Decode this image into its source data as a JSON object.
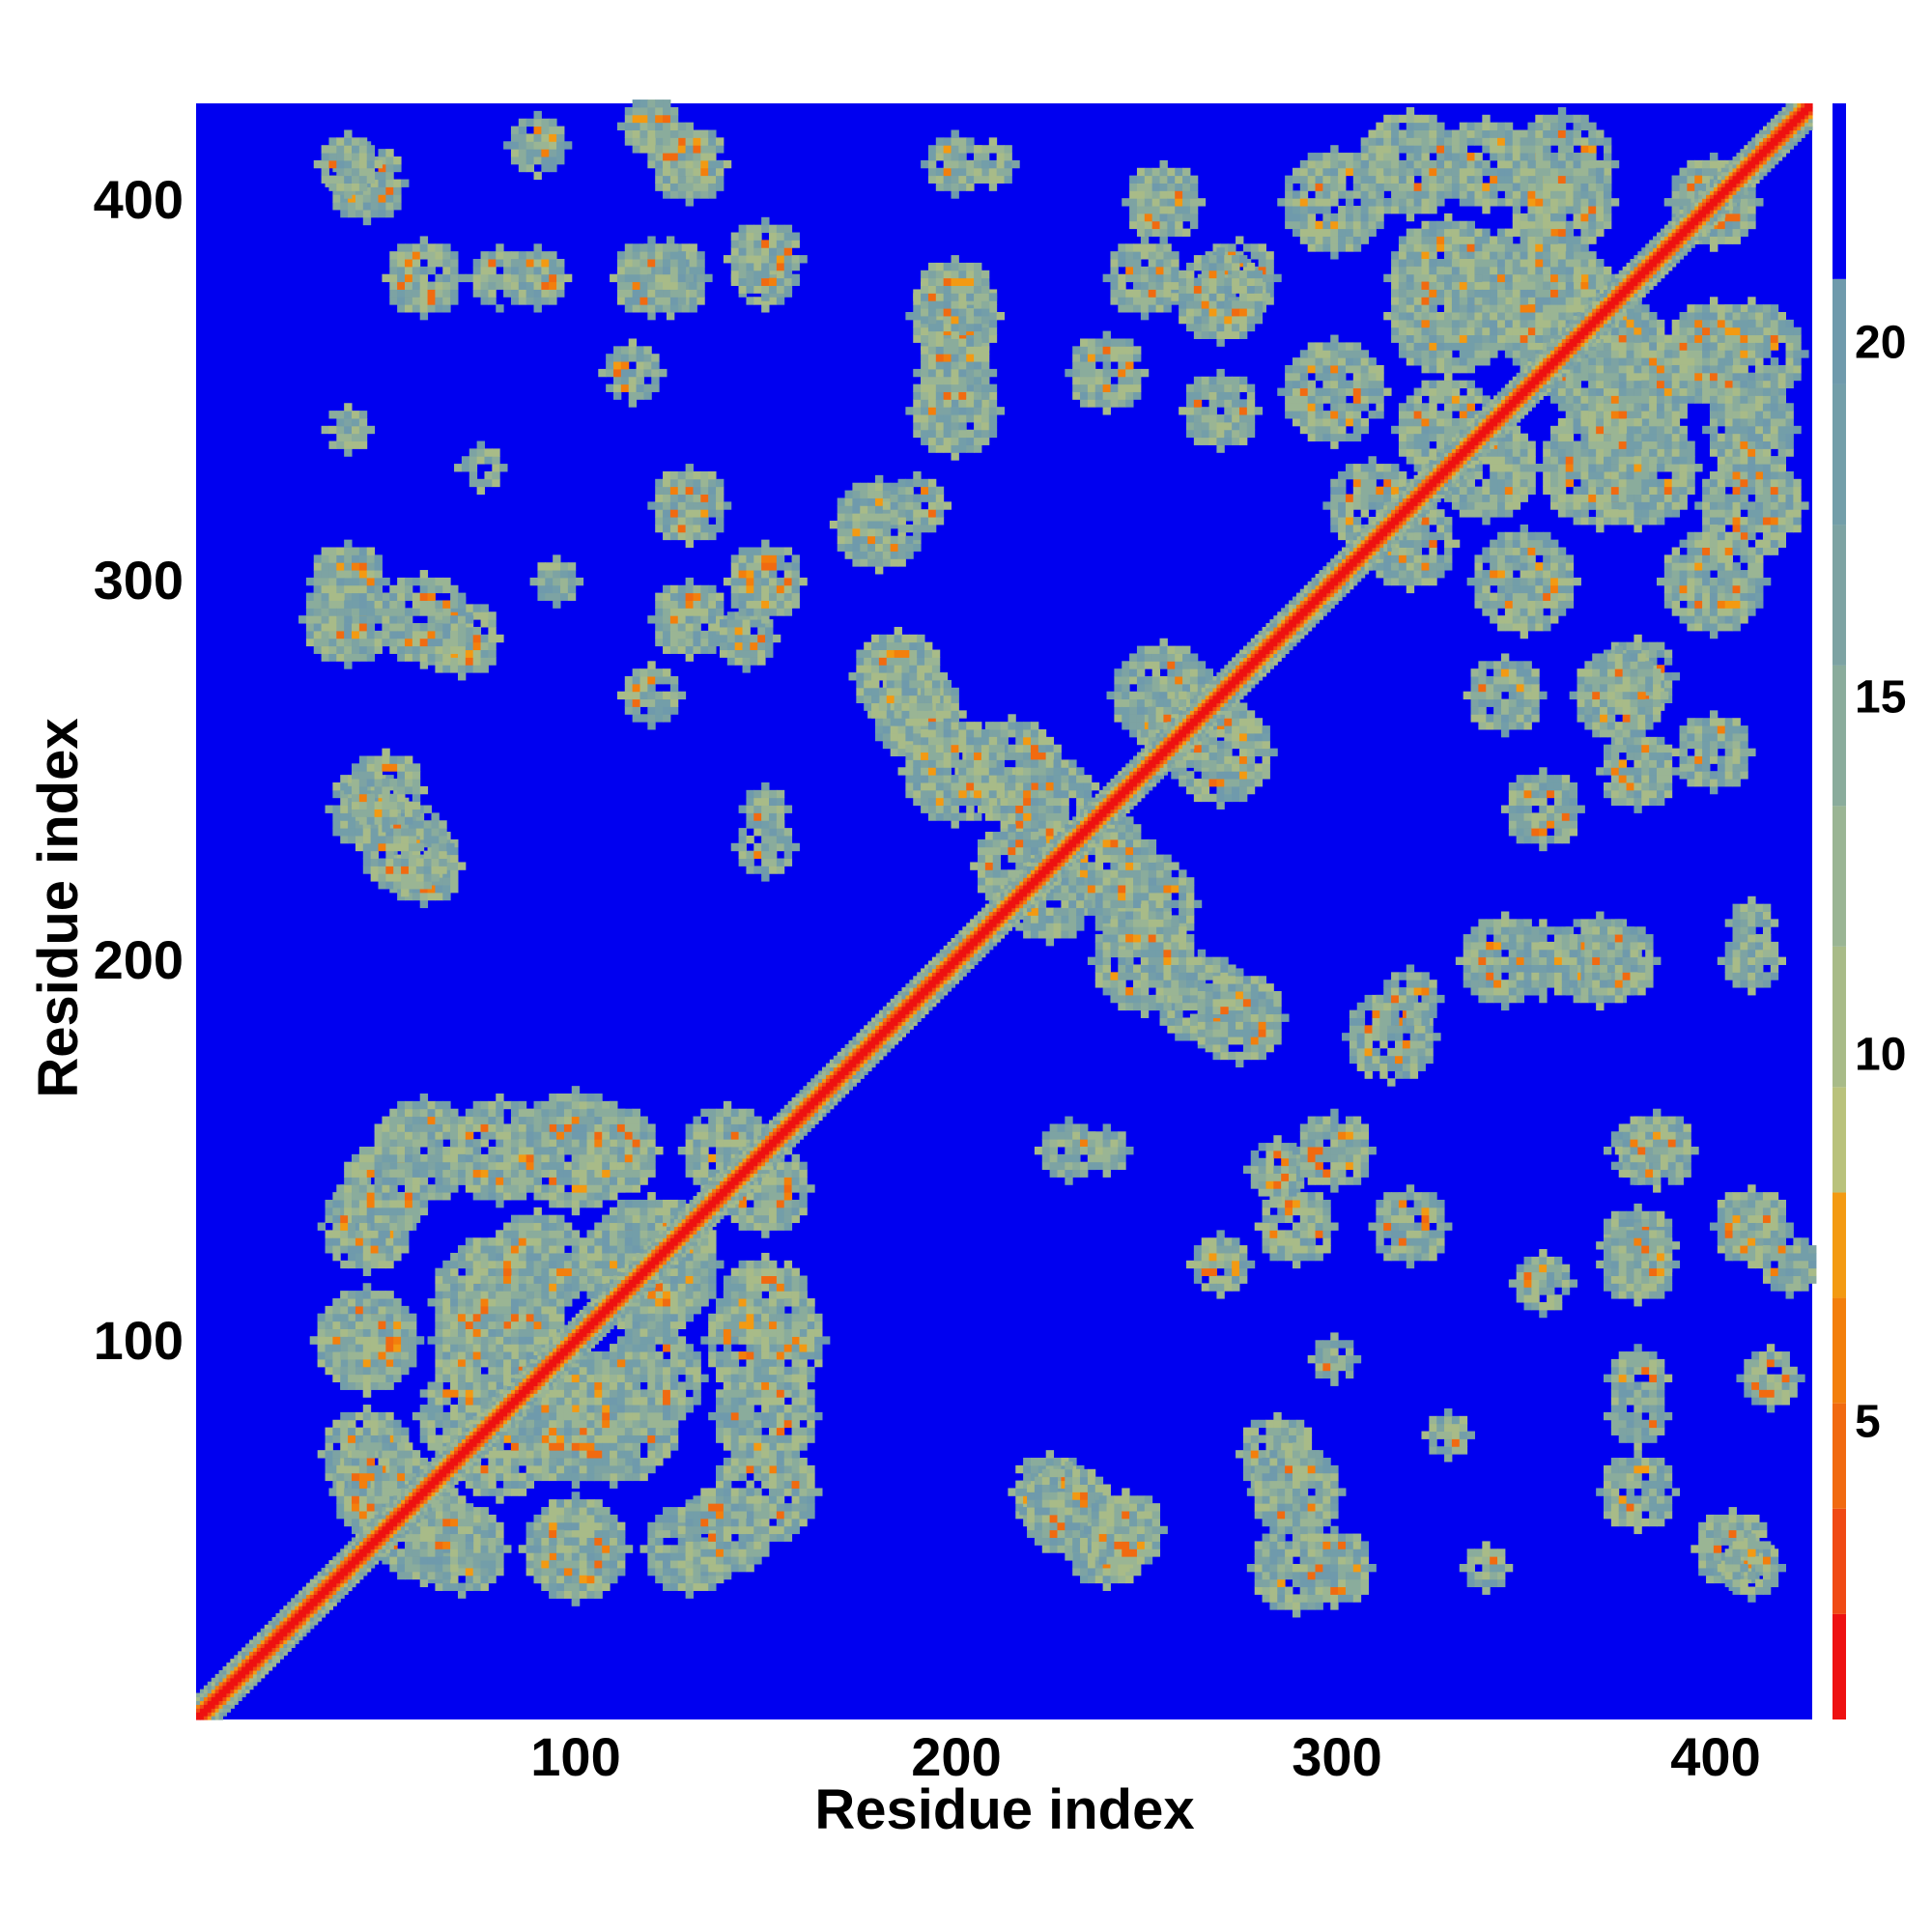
{
  "chart_data": {
    "type": "heatmap",
    "title": "",
    "xlabel": "Residue index",
    "ylabel": "Residue index",
    "xlim": [
      1,
      426
    ],
    "ylim": [
      1,
      426
    ],
    "xticks": [
      100,
      200,
      300,
      400
    ],
    "yticks": [
      100,
      200,
      300,
      400
    ],
    "xtick_labels": [
      "100",
      "200",
      "300",
      "400"
    ],
    "ytick_labels": [
      "100",
      "200",
      "300",
      "400"
    ],
    "colorbar": {
      "ticks": [
        5,
        10,
        15,
        20
      ],
      "tick_labels": [
        "5",
        "10",
        "15",
        "20"
      ],
      "range": [
        0,
        23
      ],
      "levels": [
        {
          "max": 1.5,
          "color": "#ee1111"
        },
        {
          "max": 3,
          "color": "#f04a14"
        },
        {
          "max": 4.5,
          "color": "#f16a10"
        },
        {
          "max": 6,
          "color": "#f37f0c"
        },
        {
          "max": 7.5,
          "color": "#f39a12"
        },
        {
          "max": 9,
          "color": "#b9c27c"
        },
        {
          "max": 11,
          "color": "#a8bb88"
        },
        {
          "max": 13,
          "color": "#9ab594"
        },
        {
          "max": 15,
          "color": "#8aac9c"
        },
        {
          "max": 17,
          "color": "#7da3a3"
        },
        {
          "max": 19,
          "color": "#739ea9"
        },
        {
          "max": 20.5,
          "color": "#6f9aac"
        },
        {
          "max": 23,
          "color": "#0000f0"
        }
      ]
    },
    "background_color": "#0000f0",
    "description_values": {
      "diagonal": "distance ~0-4 along i=j",
      "contact_blocks": [
        {
          "x": [
            30,
            160
          ],
          "y": [
            30,
            160
          ]
        },
        {
          "x": [
            300,
            426
          ],
          "y": [
            300,
            426
          ]
        },
        {
          "x": [
            160,
            300
          ],
          "y": [
            160,
            300
          ]
        }
      ]
    }
  }
}
